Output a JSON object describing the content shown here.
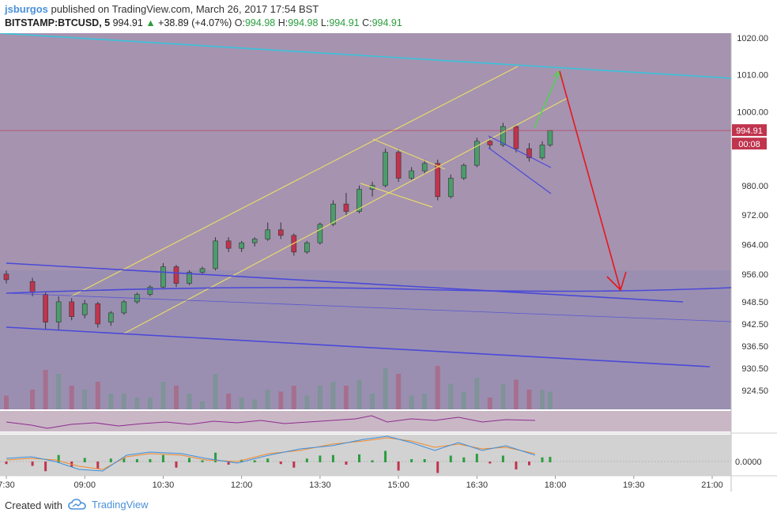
{
  "header": {
    "author": "jsburgos",
    "published_text": "published on TradingView.com, March 26, 2017 17:54 BST",
    "symbol": "BITSTAMP:BTCUSD, 5",
    "last": "994.91",
    "change_arrow": "▲",
    "change": "+38.89 (+4.07%)",
    "o_label": "O:",
    "o_value": "994.98",
    "h_label": "H:",
    "h_value": "994.98",
    "l_label": "L:",
    "l_value": "994.91",
    "c_label": "C:",
    "c_value": "994.91"
  },
  "footer": {
    "created_with": "Created with",
    "brand": "TradingView"
  },
  "price_tag": "994.91",
  "countdown_tag": "00:08",
  "indicator_zero_label": "0.0000",
  "colors": {
    "bg_purple": "#a593b0",
    "up_candle": "#4c9c6c",
    "down_candle": "#c0344e",
    "channel_yellow": "#e7d96a",
    "channel_blue": "#4b49d8",
    "trend_cyan": "#39c4dc",
    "arrow_green": "#4bd94b",
    "arrow_red": "#e8161c"
  },
  "chart_data": {
    "type": "candlestick",
    "yaxis_ticks": [
      "1020.00",
      "1010.00",
      "1000.00",
      "980.00",
      "972.00",
      "964.00",
      "956.00",
      "948.50",
      "942.50",
      "936.50",
      "930.50",
      "924.50"
    ],
    "xaxis_ticks": [
      "7:30",
      "09:00",
      "10:30",
      "12:00",
      "13:30",
      "15:00",
      "16:30",
      "18:00",
      "19:30",
      "21:00"
    ],
    "ylim": [
      920,
      1022
    ],
    "candles": [
      {
        "t": "07:30",
        "o": 956,
        "h": 957,
        "l": 953.5,
        "c": 954.5
      },
      {
        "t": "08:00",
        "o": 954,
        "h": 955,
        "l": 950,
        "c": 951
      },
      {
        "t": "08:15",
        "o": 950.5,
        "h": 951,
        "l": 941,
        "c": 943
      },
      {
        "t": "08:30",
        "o": 943,
        "h": 950,
        "l": 941,
        "c": 948.5
      },
      {
        "t": "08:45",
        "o": 948.5,
        "h": 949.5,
        "l": 943.5,
        "c": 944.5
      },
      {
        "t": "09:00",
        "o": 945,
        "h": 949,
        "l": 944,
        "c": 948
      },
      {
        "t": "09:15",
        "o": 948,
        "h": 948.5,
        "l": 941.5,
        "c": 942.5
      },
      {
        "t": "09:30",
        "o": 943,
        "h": 946,
        "l": 942,
        "c": 945.5
      },
      {
        "t": "09:45",
        "o": 945.5,
        "h": 949,
        "l": 945,
        "c": 948.5
      },
      {
        "t": "10:00",
        "o": 948.5,
        "h": 951,
        "l": 948,
        "c": 950.5
      },
      {
        "t": "10:15",
        "o": 950.5,
        "h": 953,
        "l": 950,
        "c": 952.5
      },
      {
        "t": "10:30",
        "o": 952.5,
        "h": 959,
        "l": 952,
        "c": 958
      },
      {
        "t": "10:45",
        "o": 958,
        "h": 958.5,
        "l": 952.5,
        "c": 953.5
      },
      {
        "t": "11:00",
        "o": 953.5,
        "h": 957,
        "l": 953,
        "c": 956.5
      },
      {
        "t": "11:15",
        "o": 956.5,
        "h": 958,
        "l": 956,
        "c": 957.5
      },
      {
        "t": "11:30",
        "o": 957.5,
        "h": 966,
        "l": 957,
        "c": 965
      },
      {
        "t": "11:45",
        "o": 965,
        "h": 966,
        "l": 962,
        "c": 963
      },
      {
        "t": "12:00",
        "o": 963,
        "h": 965,
        "l": 962,
        "c": 964.5
      },
      {
        "t": "12:15",
        "o": 964.5,
        "h": 966,
        "l": 963.5,
        "c": 965.5
      },
      {
        "t": "12:30",
        "o": 965.5,
        "h": 970,
        "l": 965,
        "c": 968
      },
      {
        "t": "12:45",
        "o": 968,
        "h": 970,
        "l": 965.5,
        "c": 966.5
      },
      {
        "t": "13:00",
        "o": 966.5,
        "h": 967,
        "l": 961,
        "c": 962
      },
      {
        "t": "13:15",
        "o": 962,
        "h": 965,
        "l": 961.5,
        "c": 964.5
      },
      {
        "t": "13:30",
        "o": 964.5,
        "h": 970,
        "l": 964,
        "c": 969.5
      },
      {
        "t": "13:45",
        "o": 969.5,
        "h": 976,
        "l": 969,
        "c": 975
      },
      {
        "t": "14:00",
        "o": 975,
        "h": 978,
        "l": 972,
        "c": 973
      },
      {
        "t": "14:15",
        "o": 973,
        "h": 980,
        "l": 972.5,
        "c": 979
      },
      {
        "t": "14:30",
        "o": 979,
        "h": 981,
        "l": 977,
        "c": 980
      },
      {
        "t": "14:45",
        "o": 980,
        "h": 990,
        "l": 979.5,
        "c": 989
      },
      {
        "t": "15:00",
        "o": 989,
        "h": 990,
        "l": 981,
        "c": 982
      },
      {
        "t": "15:15",
        "o": 982,
        "h": 985,
        "l": 981.5,
        "c": 984
      },
      {
        "t": "15:30",
        "o": 984,
        "h": 987,
        "l": 983,
        "c": 986
      },
      {
        "t": "15:45",
        "o": 986,
        "h": 987,
        "l": 976,
        "c": 977
      },
      {
        "t": "16:00",
        "o": 977,
        "h": 983,
        "l": 976.5,
        "c": 982
      },
      {
        "t": "16:15",
        "o": 982,
        "h": 986,
        "l": 981.5,
        "c": 985.5
      },
      {
        "t": "16:30",
        "o": 985.5,
        "h": 993,
        "l": 985,
        "c": 992
      },
      {
        "t": "16:45",
        "o": 992,
        "h": 993,
        "l": 990,
        "c": 991
      },
      {
        "t": "17:00",
        "o": 991,
        "h": 997,
        "l": 990.5,
        "c": 996
      },
      {
        "t": "17:15",
        "o": 996,
        "h": 996.5,
        "l": 989,
        "c": 990
      },
      {
        "t": "17:30",
        "o": 990,
        "h": 991.5,
        "l": 986.5,
        "c": 987.5
      },
      {
        "t": "17:45",
        "o": 987.5,
        "h": 992,
        "l": 987,
        "c": 991
      },
      {
        "t": "17:54",
        "o": 991,
        "h": 995,
        "l": 990.5,
        "c": 994.91
      }
    ]
  }
}
